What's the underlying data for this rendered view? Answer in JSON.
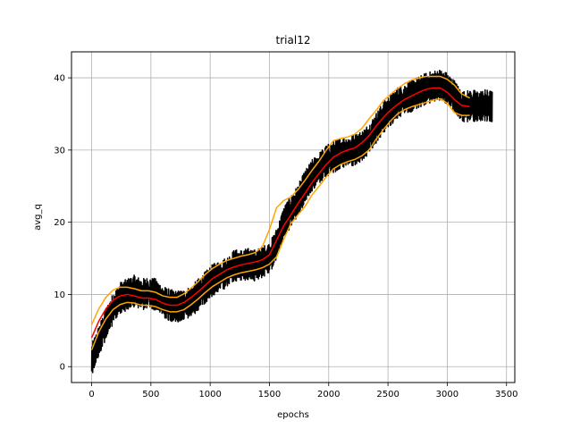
{
  "chart_data": {
    "type": "line",
    "title": "trial12",
    "xlabel": "epochs",
    "ylabel": "avg_q",
    "xlim": [
      -170,
      3570
    ],
    "ylim": [
      -2.2,
      43.6
    ],
    "xticks": [
      0,
      500,
      1000,
      1500,
      2000,
      2500,
      3000,
      3500
    ],
    "yticks": [
      0,
      10,
      20,
      30,
      40
    ],
    "grid": true,
    "legend": "none",
    "series": [
      {
        "style": "raw noisy",
        "color": "#000000",
        "x": [
          0,
          60,
          120,
          180,
          240,
          300,
          360,
          420,
          480,
          540,
          600,
          660,
          720,
          780,
          840,
          900,
          960,
          1020,
          1080,
          1140,
          1200,
          1260,
          1320,
          1380,
          1440,
          1500,
          1560,
          1620,
          1680,
          1740,
          1800,
          1860,
          1920,
          1980,
          2040,
          2100,
          2160,
          2220,
          2280,
          2340,
          2400,
          2460,
          2520,
          2580,
          2640,
          2700,
          2760,
          2820,
          2880,
          2940,
          3000,
          3060,
          3120,
          3160,
          3200,
          3260,
          3320,
          3380
        ],
        "y": [
          1.0,
          3.5,
          6.0,
          8.0,
          9.5,
          10.0,
          10.5,
          10.0,
          10.2,
          10.0,
          9.0,
          8.5,
          8.3,
          8.5,
          9.0,
          10.0,
          11.0,
          12.0,
          12.5,
          13.0,
          14.0,
          14.0,
          14.2,
          14.0,
          14.5,
          15.0,
          17.0,
          20.0,
          21.5,
          23.0,
          25.0,
          26.5,
          27.5,
          28.5,
          29.0,
          29.5,
          29.7,
          30.0,
          30.5,
          31.5,
          33.0,
          34.5,
          35.5,
          36.5,
          37.0,
          37.5,
          38.0,
          38.5,
          38.8,
          39.0,
          38.5,
          37.5,
          36.0,
          36.0,
          36.2,
          36.0,
          36.2,
          36.0
        ]
      },
      {
        "style": "mean",
        "color": "#ff0000",
        "x": [
          0,
          60,
          120,
          180,
          240,
          300,
          360,
          420,
          480,
          540,
          600,
          660,
          720,
          780,
          840,
          900,
          960,
          1020,
          1080,
          1140,
          1200,
          1260,
          1320,
          1380,
          1440,
          1500,
          1560,
          1620,
          1680,
          1740,
          1800,
          1860,
          1920,
          1980,
          2040,
          2100,
          2160,
          2220,
          2280,
          2340,
          2400,
          2460,
          2520,
          2580,
          2640,
          2700,
          2760,
          2820,
          2880,
          2940,
          3000,
          3060,
          3120,
          3190
        ],
        "y": [
          4.0,
          6.3,
          8.0,
          9.2,
          9.8,
          10.0,
          9.8,
          9.5,
          9.5,
          9.3,
          8.8,
          8.5,
          8.5,
          8.9,
          9.6,
          10.4,
          11.3,
          12.2,
          12.8,
          13.4,
          13.8,
          14.1,
          14.3,
          14.5,
          14.8,
          15.5,
          17.5,
          19.5,
          21.0,
          22.6,
          24.0,
          25.5,
          26.8,
          28.0,
          29.0,
          29.6,
          30.0,
          30.3,
          31.0,
          32.0,
          33.3,
          34.5,
          35.5,
          36.3,
          37.0,
          37.5,
          38.0,
          38.4,
          38.6,
          38.6,
          38.0,
          37.0,
          36.2,
          36.0
        ]
      },
      {
        "style": "upper band",
        "color": "#ffa500",
        "x": [
          0,
          60,
          120,
          180,
          240,
          300,
          360,
          420,
          480,
          540,
          600,
          660,
          720,
          780,
          840,
          900,
          960,
          1020,
          1080,
          1140,
          1200,
          1260,
          1320,
          1380,
          1440,
          1500,
          1560,
          1620,
          1680,
          1740,
          1800,
          1860,
          1920,
          1980,
          2040,
          2100,
          2160,
          2220,
          2280,
          2340,
          2400,
          2460,
          2520,
          2580,
          2640,
          2700,
          2760,
          2820,
          2880,
          2940,
          3000,
          3060,
          3120,
          3190
        ],
        "y": [
          5.8,
          8.0,
          9.6,
          10.6,
          11.0,
          11.0,
          10.8,
          10.5,
          10.5,
          10.3,
          9.8,
          9.6,
          9.6,
          10.1,
          10.9,
          11.8,
          12.8,
          13.6,
          14.2,
          14.7,
          15.0,
          15.3,
          15.5,
          15.8,
          16.6,
          19.0,
          22.0,
          23.0,
          23.5,
          24.5,
          25.8,
          27.2,
          28.5,
          30.0,
          31.3,
          31.6,
          31.8,
          32.2,
          33.0,
          34.3,
          35.5,
          36.8,
          37.7,
          38.5,
          39.2,
          39.7,
          40.0,
          40.2,
          40.2,
          40.2,
          39.8,
          39.0,
          37.8,
          37.2
        ]
      },
      {
        "style": "lower band",
        "color": "#ffa500",
        "x": [
          0,
          60,
          120,
          180,
          240,
          300,
          360,
          420,
          480,
          540,
          600,
          660,
          720,
          780,
          840,
          900,
          960,
          1020,
          1080,
          1140,
          1200,
          1260,
          1320,
          1380,
          1440,
          1500,
          1560,
          1620,
          1680,
          1740,
          1800,
          1860,
          1920,
          1980,
          2040,
          2100,
          2160,
          2220,
          2280,
          2340,
          2400,
          2460,
          2520,
          2580,
          2640,
          2700,
          2760,
          2820,
          2880,
          2940,
          3000,
          3060,
          3120,
          3190
        ],
        "y": [
          2.3,
          4.8,
          6.6,
          7.9,
          8.6,
          8.9,
          8.8,
          8.5,
          8.5,
          8.3,
          7.9,
          7.6,
          7.6,
          7.9,
          8.6,
          9.4,
          10.3,
          11.1,
          11.7,
          12.3,
          12.7,
          13.0,
          13.2,
          13.4,
          13.7,
          14.2,
          15.2,
          17.6,
          19.8,
          21.0,
          22.2,
          23.8,
          25.0,
          26.3,
          27.4,
          28.0,
          28.4,
          28.7,
          29.2,
          30.0,
          31.5,
          32.8,
          34.0,
          35.0,
          35.6,
          36.0,
          36.3,
          36.6,
          36.9,
          37.1,
          36.5,
          35.2,
          34.8,
          34.8
        ]
      }
    ]
  }
}
